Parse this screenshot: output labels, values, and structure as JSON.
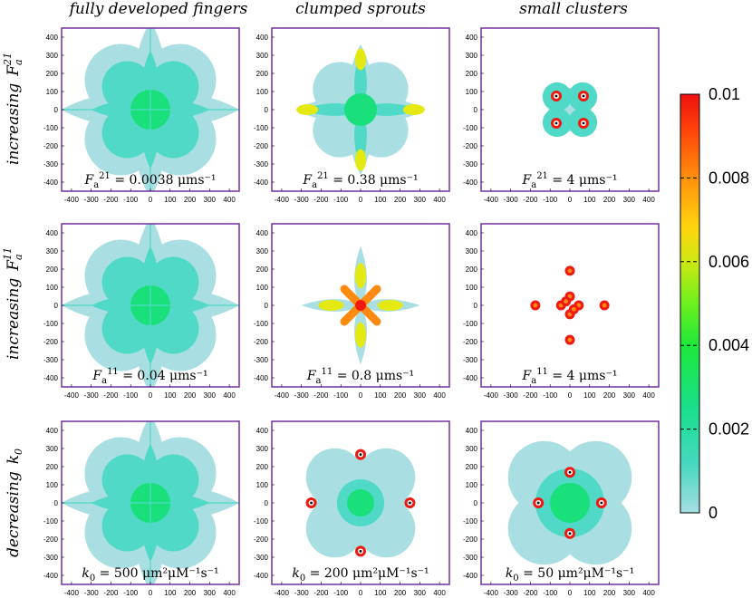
{
  "figure": {
    "column_titles": [
      "fully developed fingers",
      "clumped sprouts",
      "small clusters"
    ],
    "row_titles": [
      {
        "text": "increasing",
        "symbol": "F",
        "sub": "a",
        "sup": "21"
      },
      {
        "text": "increasing",
        "symbol": "F",
        "sub": "a",
        "sup": "11"
      },
      {
        "text": "decreasing",
        "symbol": "k",
        "sub": "0",
        "sup": ""
      }
    ]
  },
  "colorbar": {
    "min": 0,
    "max": 0.01,
    "ticks": [
      "0.01",
      "0.008",
      "0.006",
      "0.004",
      "0.002",
      "0"
    ],
    "colors": [
      "#9fdcde",
      "#2ed6b8",
      "#19e07a",
      "#22ee22",
      "#8cf21c",
      "#d9ee12",
      "#ffcf10",
      "#ff8a0c",
      "#ff3a0a",
      "#ee1111"
    ]
  },
  "chart_data": [
    {
      "type": "heatmap",
      "title": "fully developed fingers",
      "param": "Fa21",
      "annotation": {
        "symbol": "F",
        "sub": "a",
        "sup": "21",
        "value": " = 0.0038 μms⁻¹"
      },
      "pattern": "fingers",
      "xlim": [
        -450,
        450
      ],
      "ylim": [
        -450,
        450
      ],
      "xticks": [
        -400,
        -300,
        -200,
        -100,
        0,
        100,
        200,
        300,
        400
      ],
      "yticks": [
        -400,
        -300,
        -200,
        -100,
        0,
        100,
        200,
        300,
        400
      ]
    },
    {
      "type": "heatmap",
      "title": "clumped sprouts",
      "param": "Fa21",
      "annotation": {
        "symbol": "F",
        "sub": "a",
        "sup": "21",
        "value": " = 0.38 μms⁻¹"
      },
      "pattern": "sprouts",
      "xlim": [
        -450,
        450
      ],
      "ylim": [
        -450,
        450
      ],
      "xticks": [
        -400,
        -300,
        -200,
        -100,
        0,
        100,
        200,
        300,
        400
      ],
      "yticks": [
        -400,
        -300,
        -200,
        -100,
        0,
        100,
        200,
        300,
        400
      ]
    },
    {
      "type": "heatmap",
      "title": "small clusters",
      "param": "Fa21",
      "annotation": {
        "symbol": "F",
        "sub": "a",
        "sup": "21",
        "value": " = 4 μms⁻¹"
      },
      "pattern": "clusters-tight",
      "xlim": [
        -450,
        450
      ],
      "ylim": [
        -450,
        450
      ],
      "xticks": [
        -400,
        -300,
        -200,
        -100,
        0,
        100,
        200,
        300,
        400
      ],
      "yticks": [
        -400,
        -300,
        -200,
        -100,
        0,
        100,
        200,
        300,
        400
      ]
    },
    {
      "type": "heatmap",
      "title": "fully developed fingers",
      "param": "Fa11",
      "annotation": {
        "symbol": "F",
        "sub": "a",
        "sup": "11",
        "value": " = 0.04 μms⁻¹"
      },
      "pattern": "fingers",
      "xlim": [
        -450,
        450
      ],
      "ylim": [
        -450,
        450
      ],
      "xticks": [
        -400,
        -300,
        -200,
        -100,
        0,
        100,
        200,
        300,
        400
      ],
      "yticks": [
        -400,
        -300,
        -200,
        -100,
        0,
        100,
        200,
        300,
        400
      ]
    },
    {
      "type": "heatmap",
      "title": "clumped sprouts",
      "param": "Fa11",
      "annotation": {
        "symbol": "F",
        "sub": "a",
        "sup": "11",
        "value": " = 0.8 μms⁻¹"
      },
      "pattern": "sprouts-thin",
      "xlim": [
        -450,
        450
      ],
      "ylim": [
        -450,
        450
      ],
      "xticks": [
        -400,
        -300,
        -200,
        -100,
        0,
        100,
        200,
        300,
        400
      ],
      "yticks": [
        -400,
        -300,
        -200,
        -100,
        0,
        100,
        200,
        300,
        400
      ]
    },
    {
      "type": "heatmap",
      "title": "small clusters",
      "param": "Fa11",
      "annotation": {
        "symbol": "F",
        "sub": "a",
        "sup": "11",
        "value": " = 4 μms⁻¹"
      },
      "pattern": "clusters-scattered",
      "xlim": [
        -450,
        450
      ],
      "ylim": [
        -450,
        450
      ],
      "xticks": [
        -400,
        -300,
        -200,
        -100,
        0,
        100,
        200,
        300,
        400
      ],
      "yticks": [
        -400,
        -300,
        -200,
        -100,
        0,
        100,
        200,
        300,
        400
      ]
    },
    {
      "type": "heatmap",
      "title": "fully developed fingers",
      "param": "k0",
      "annotation": {
        "symbol": "k",
        "sub": "0",
        "sup": "",
        "value": " = 500 μm²μM⁻¹s⁻¹"
      },
      "pattern": "fingers",
      "xlim": [
        -450,
        450
      ],
      "ylim": [
        -450,
        450
      ],
      "xticks": [
        -400,
        -300,
        -200,
        -100,
        0,
        100,
        200,
        300,
        400
      ],
      "yticks": [
        -400,
        -300,
        -200,
        -100,
        0,
        100,
        200,
        300,
        400
      ]
    },
    {
      "type": "heatmap",
      "title": "clumped sprouts",
      "param": "k0",
      "annotation": {
        "symbol": "k",
        "sub": "0",
        "sup": "",
        "value": " = 200 μm²μM⁻¹s⁻¹"
      },
      "pattern": "sprouts-short",
      "xlim": [
        -450,
        450
      ],
      "ylim": [
        -450,
        450
      ],
      "xticks": [
        -400,
        -300,
        -200,
        -100,
        0,
        100,
        200,
        300,
        400
      ],
      "yticks": [
        -400,
        -300,
        -200,
        -100,
        0,
        100,
        200,
        300,
        400
      ]
    },
    {
      "type": "heatmap",
      "title": "small clusters",
      "param": "k0",
      "annotation": {
        "symbol": "k",
        "sub": "0",
        "sup": "",
        "value": " = 50 μm²μM⁻¹s⁻¹"
      },
      "pattern": "blob-tips",
      "xlim": [
        -450,
        450
      ],
      "ylim": [
        -450,
        450
      ],
      "xticks": [
        -400,
        -300,
        -200,
        -100,
        0,
        100,
        200,
        300,
        400
      ],
      "yticks": [
        -400,
        -300,
        -200,
        -100,
        0,
        100,
        200,
        300,
        400
      ]
    }
  ]
}
